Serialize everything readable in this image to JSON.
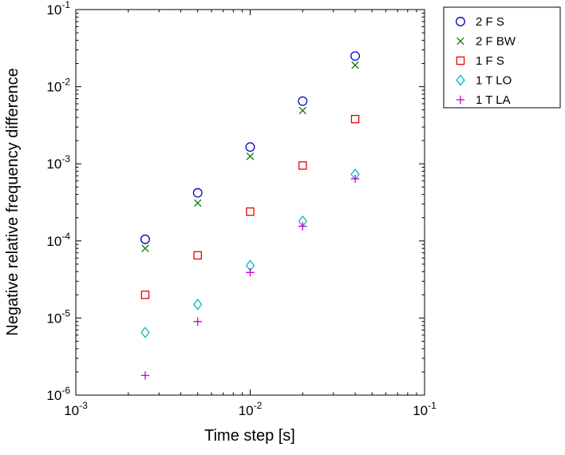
{
  "figure": {
    "background": "#ffffff",
    "frame_color": "#000000"
  },
  "chart_data": {
    "type": "scatter",
    "title": "",
    "xlabel": "Time step [s]",
    "ylabel": "Negative relative frequency difference",
    "x_scale": "log",
    "y_scale": "log",
    "xlim": [
      0.001,
      0.1
    ],
    "ylim": [
      1e-06,
      0.1
    ],
    "x_tick_exponents": [
      -3,
      -2,
      -1
    ],
    "y_tick_exponents": [
      -6,
      -5,
      -4,
      -3,
      -2,
      -1
    ],
    "grid": false,
    "legend_position": "outside-top-right",
    "x": [
      0.0025,
      0.005,
      0.01,
      0.02,
      0.04
    ],
    "series": [
      {
        "name": "2 F S",
        "marker": "circle",
        "color": "#0000cc",
        "values": [
          0.000105,
          0.00042,
          0.00165,
          0.0065,
          0.025
        ]
      },
      {
        "name": "2 F BW",
        "marker": "x",
        "color": "#007f00",
        "values": [
          8e-05,
          0.00031,
          0.00125,
          0.0049,
          0.019
        ]
      },
      {
        "name": "1 F S",
        "marker": "square",
        "color": "#ee0000",
        "values": [
          2e-05,
          6.5e-05,
          0.00024,
          0.00095,
          0.0038
        ]
      },
      {
        "name": "1 T LO",
        "marker": "diamond",
        "color": "#00bcbc",
        "values": [
          6.5e-06,
          1.5e-05,
          4.8e-05,
          0.00018,
          0.00073
        ]
      },
      {
        "name": "1 T LA",
        "marker": "plus",
        "color": "#cc00cc",
        "values": [
          1.8e-06,
          9e-06,
          3.9e-05,
          0.000155,
          0.00064
        ]
      }
    ]
  }
}
